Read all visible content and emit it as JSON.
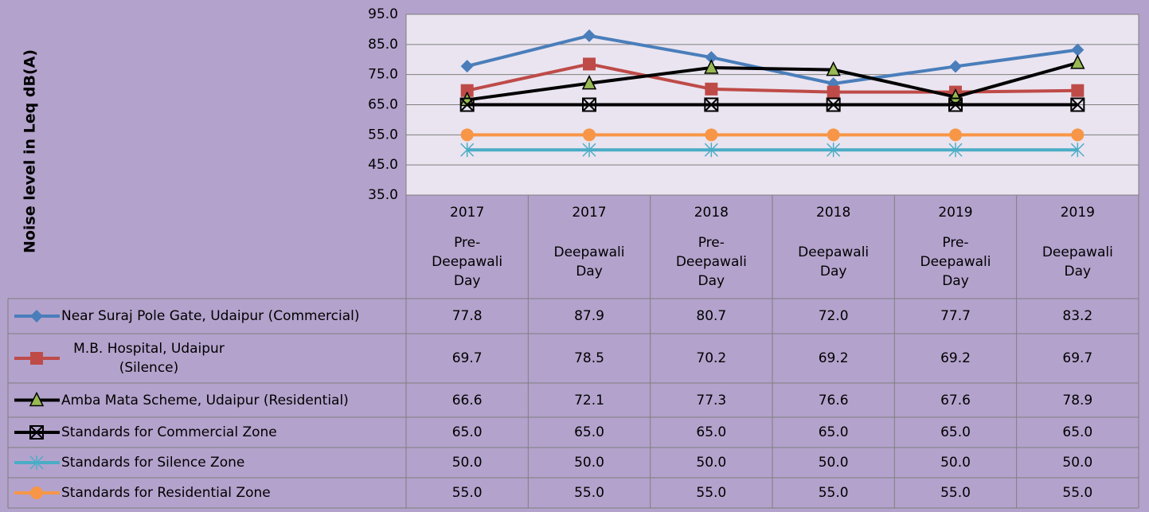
{
  "chart_data": {
    "type": "line",
    "y_axis_label": "Noise level in Leq dB(A)",
    "categories": [
      {
        "year": "2017",
        "label": "Pre-Deepawali Day"
      },
      {
        "year": "2017",
        "label": "Deepawali Day"
      },
      {
        "year": "2018",
        "label": "Pre-Deepawali Day"
      },
      {
        "year": "2018",
        "label": "Deepawali Day"
      },
      {
        "year": "2019",
        "label": "Pre-Deepawali Day"
      },
      {
        "year": "2019",
        "label": "Deepawali Day"
      }
    ],
    "ylim": [
      35,
      95
    ],
    "yticks": [
      {
        "value": 35,
        "label": "35.0"
      },
      {
        "value": 45,
        "label": "45.0"
      },
      {
        "value": 55,
        "label": "55.0"
      },
      {
        "value": 65,
        "label": "65.0"
      },
      {
        "value": 75,
        "label": "75.0"
      },
      {
        "value": 85,
        "label": "85.0"
      },
      {
        "value": 95,
        "label": "95.0"
      }
    ],
    "grid": true,
    "series": [
      {
        "name": "Near Suraj Pole Gate, Udaipur (Commercial)",
        "color": "#4a7ebb",
        "marker": "diamond",
        "marker_color": "#4a7ebb",
        "values": [
          77.8,
          87.9,
          80.7,
          72.0,
          77.7,
          83.2
        ],
        "value_labels": [
          "77.8",
          "87.9",
          "80.7",
          "72.0",
          "77.7",
          "83.2"
        ]
      },
      {
        "name": "M.B. Hospital, Udaipur (Silence)",
        "color": "#be4b48",
        "marker": "square",
        "marker_color": "#be4b48",
        "values": [
          69.7,
          78.5,
          70.2,
          69.2,
          69.2,
          69.7
        ],
        "value_labels": [
          "69.7",
          "78.5",
          "70.2",
          "69.2",
          "69.2",
          "69.7"
        ]
      },
      {
        "name": "Amba Mata Scheme, Udaipur (Residential)",
        "color": "#000000",
        "marker": "triangle",
        "marker_color": "#98b954",
        "values": [
          66.6,
          72.1,
          77.3,
          76.6,
          67.6,
          78.9
        ],
        "value_labels": [
          "66.6",
          "72.1",
          "77.3",
          "76.6",
          "67.6",
          "78.9"
        ]
      },
      {
        "name": "Standards for Commercial Zone",
        "color": "#000000",
        "marker": "xsquare",
        "marker_color": "#000000",
        "values": [
          65,
          65,
          65,
          65,
          65,
          65
        ],
        "value_labels": [
          "65.0",
          "65.0",
          "65.0",
          "65.0",
          "65.0",
          "65.0"
        ]
      },
      {
        "name": "Standards for Silence Zone",
        "color": "#4bacc6",
        "marker": "star",
        "marker_color": "#4bacc6",
        "values": [
          50,
          50,
          50,
          50,
          50,
          50
        ],
        "value_labels": [
          "50.0",
          "50.0",
          "50.0",
          "50.0",
          "50.0",
          "50.0"
        ]
      },
      {
        "name": "Standards for Residential Zone",
        "color": "#f79646",
        "marker": "circle",
        "marker_color": "#f79646",
        "values": [
          55,
          55,
          55,
          55,
          55,
          55
        ],
        "value_labels": [
          "55.0",
          "55.0",
          "55.0",
          "55.0",
          "55.0",
          "55.0"
        ]
      }
    ]
  }
}
